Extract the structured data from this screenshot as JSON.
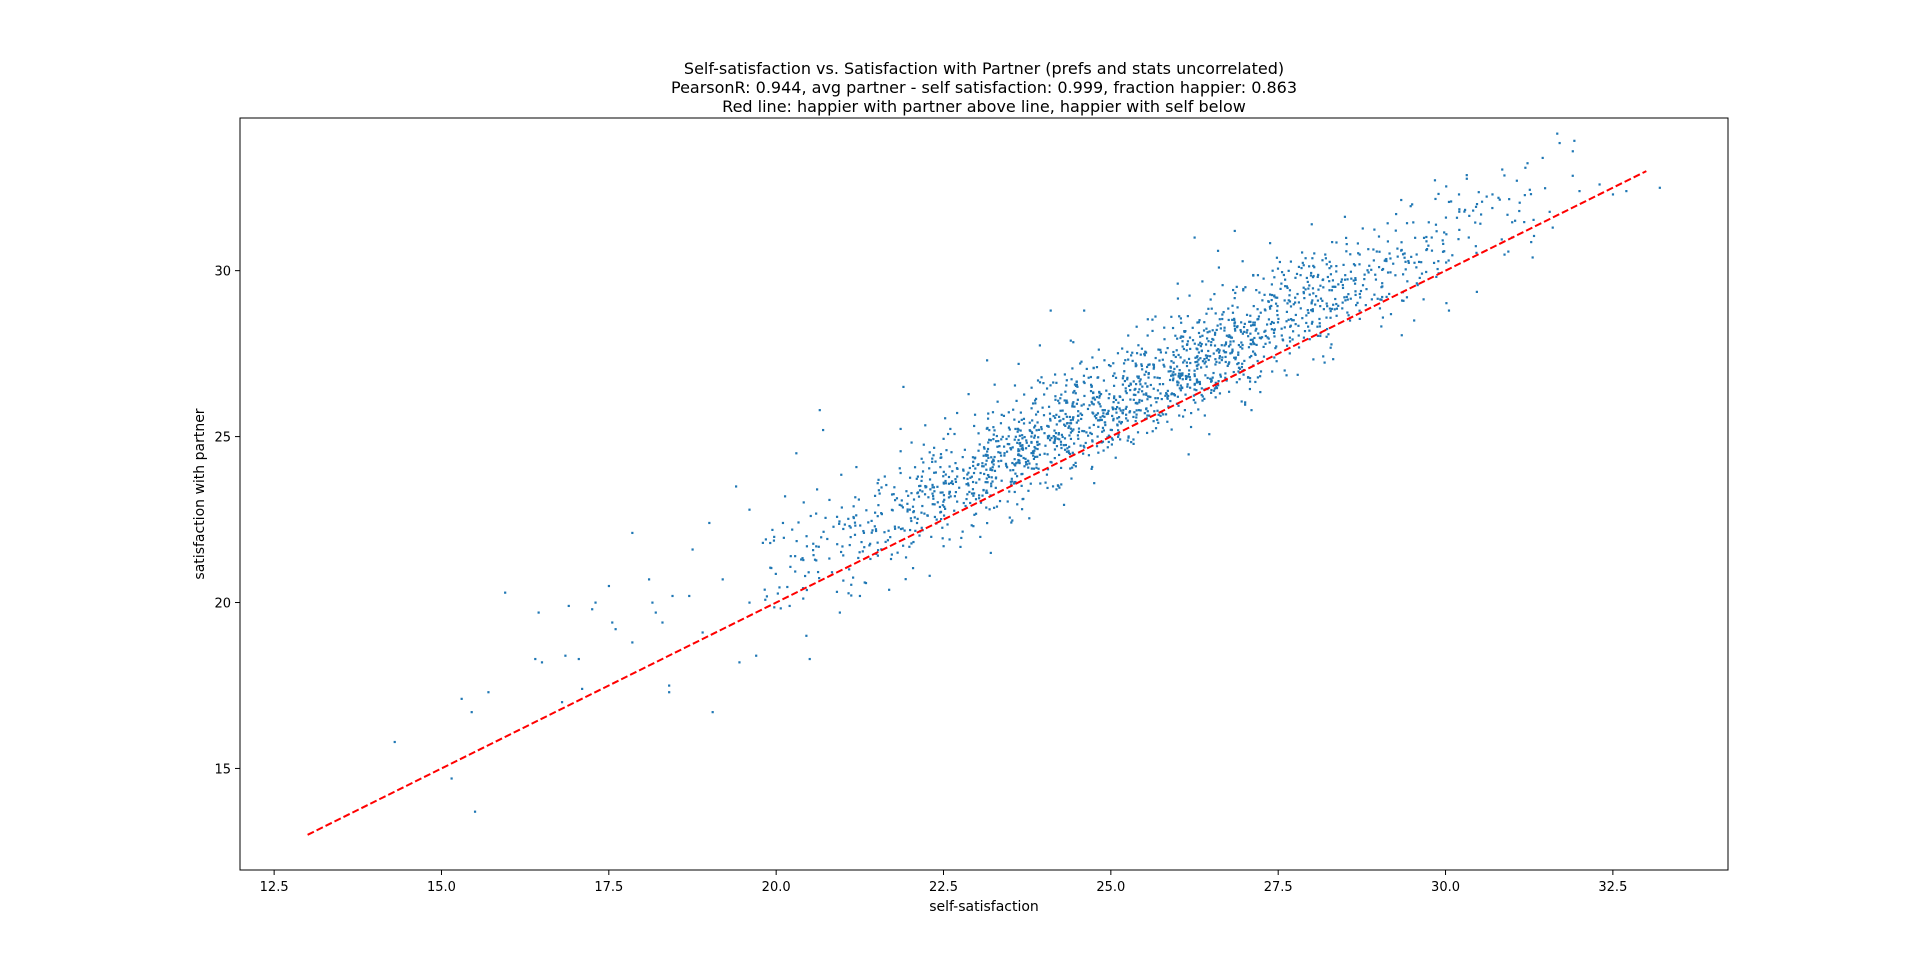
{
  "chart_data": {
    "type": "scatter",
    "title_lines": [
      "Self-satisfaction vs. Satisfaction with Partner (prefs and stats uncorrelated)",
      "PearsonR: 0.944, avg partner - self satisfaction: 0.999, fraction happier: 0.863",
      "Red line: happier with partner above line, happier with self below"
    ],
    "xlabel": "self-satisfaction",
    "ylabel": "satisfaction with partner",
    "xlim": [
      11.99,
      34.22
    ],
    "ylim": [
      11.94,
      34.6
    ],
    "xticks": [
      12.5,
      15.0,
      17.5,
      20.0,
      22.5,
      25.0,
      27.5,
      30.0,
      32.5
    ],
    "xtick_labels": [
      "12.5",
      "15.0",
      "17.5",
      "20.0",
      "22.5",
      "25.0",
      "27.5",
      "30.0",
      "32.5"
    ],
    "yticks": [
      15,
      20,
      25,
      30
    ],
    "ytick_labels": [
      "15",
      "20",
      "25",
      "30"
    ],
    "grid": false,
    "point_color": "#1f77b4",
    "line_color": "#ff0000",
    "reference_line": {
      "x": [
        13,
        33
      ],
      "y": [
        13,
        33
      ],
      "style": "dashed"
    },
    "points_explicit": [
      [
        14.3,
        15.8
      ],
      [
        15.15,
        14.7
      ],
      [
        15.5,
        13.7
      ],
      [
        15.3,
        17.1
      ],
      [
        15.45,
        16.7
      ],
      [
        15.7,
        17.3
      ],
      [
        15.95,
        20.3
      ],
      [
        16.4,
        18.3
      ],
      [
        16.5,
        18.2
      ],
      [
        16.45,
        19.7
      ],
      [
        16.9,
        19.9
      ],
      [
        16.85,
        18.4
      ],
      [
        17.05,
        18.3
      ],
      [
        17.25,
        19.8
      ],
      [
        17.3,
        20.0
      ],
      [
        17.5,
        20.5
      ],
      [
        17.55,
        19.4
      ],
      [
        17.6,
        19.2
      ],
      [
        17.85,
        22.1
      ],
      [
        17.85,
        18.8
      ],
      [
        18.1,
        20.7
      ],
      [
        18.15,
        20.0
      ],
      [
        18.2,
        19.7
      ],
      [
        18.4,
        17.5
      ],
      [
        18.4,
        17.3
      ],
      [
        18.45,
        20.2
      ],
      [
        18.7,
        20.2
      ],
      [
        18.75,
        21.6
      ],
      [
        19.05,
        16.7
      ],
      [
        19.0,
        22.4
      ],
      [
        19.4,
        23.5
      ],
      [
        19.45,
        18.2
      ],
      [
        19.6,
        22.8
      ],
      [
        19.7,
        18.4
      ],
      [
        19.6,
        20.0
      ],
      [
        20.5,
        18.3
      ],
      [
        20.45,
        19.0
      ],
      [
        20.7,
        25.2
      ],
      [
        20.65,
        25.8
      ],
      [
        20.3,
        24.5
      ],
      [
        21.9,
        26.5
      ],
      [
        23.15,
        27.3
      ],
      [
        24.1,
        28.8
      ],
      [
        24.6,
        28.8
      ],
      [
        26.25,
        31.0
      ],
      [
        26.85,
        31.2
      ],
      [
        26.6,
        30.6
      ],
      [
        28.0,
        31.4
      ],
      [
        31.45,
        33.4
      ],
      [
        31.9,
        33.6
      ],
      [
        33.2,
        32.5
      ],
      [
        32.7,
        32.4
      ],
      [
        32.0,
        32.4
      ],
      [
        31.3,
        30.4
      ],
      [
        30.05,
        28.8
      ],
      [
        27.1,
        25.8
      ],
      [
        24.75,
        23.6
      ],
      [
        22.5,
        21.7
      ],
      [
        21.25,
        20.2
      ],
      [
        20.95,
        19.7
      ],
      [
        20.2,
        19.9
      ],
      [
        18.9,
        19.1
      ],
      [
        19.2,
        20.7
      ],
      [
        17.1,
        17.4
      ],
      [
        16.8,
        17.0
      ],
      [
        18.3,
        19.4
      ],
      [
        19.8,
        21.8
      ],
      [
        20.1,
        22.4
      ],
      [
        29.5,
        32.0
      ],
      [
        30.2,
        32.3
      ],
      [
        30.7,
        32.3
      ],
      [
        31.1,
        31.8
      ],
      [
        32.3,
        32.6
      ],
      [
        31.6,
        31.3
      ],
      [
        32.5,
        32.3
      ]
    ],
    "points_cloud": {
      "n": 1900,
      "x_mean": 25.3,
      "x_sd": 2.6,
      "x_min": 19.8,
      "x_max": 32.0,
      "offset": 1.0,
      "noise_sd": 0.85,
      "seed": 7
    }
  }
}
